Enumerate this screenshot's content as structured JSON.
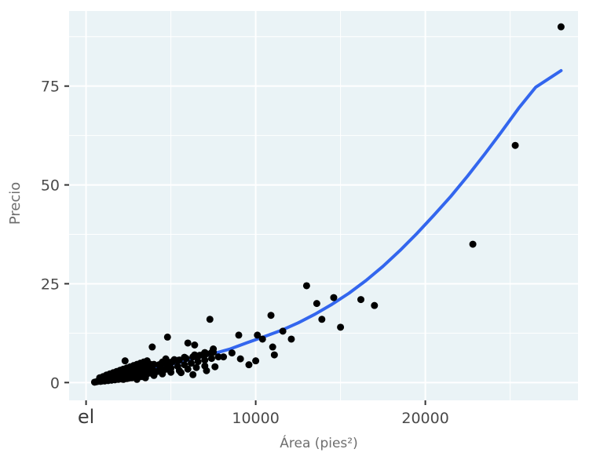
{
  "chart_data": {
    "type": "scatter",
    "xlabel": "Área (pies²)",
    "ylabel": "Precio",
    "xlim": [
      -1000,
      29000
    ],
    "ylim": [
      -4.5,
      94
    ],
    "x_ticks": [
      {
        "value": 0,
        "label": "el"
      },
      {
        "value": 10000,
        "label": "10000"
      },
      {
        "value": 20000,
        "label": "20000"
      }
    ],
    "y_ticks": [
      {
        "value": 0,
        "label": "0"
      },
      {
        "value": 25,
        "label": "25"
      },
      {
        "value": 50,
        "label": "50"
      },
      {
        "value": 75,
        "label": "75"
      }
    ],
    "grid": true,
    "panel_color": "#eaf3f6",
    "point_color": "#000000",
    "line_color": "#3366ee",
    "series": [
      {
        "kind": "points",
        "x": [
          500,
          600,
          700,
          800,
          850,
          900,
          950,
          1000,
          1050,
          1100,
          1150,
          1200,
          1250,
          1300,
          1350,
          1400,
          1450,
          1500,
          1550,
          1600,
          1650,
          1700,
          1750,
          1800,
          1850,
          1900,
          1950,
          2000,
          2050,
          2100,
          2150,
          2200,
          2250,
          2300,
          2350,
          2400,
          2450,
          2500,
          2550,
          2600,
          2650,
          2700,
          2750,
          2800,
          2850,
          2900,
          2950,
          3000,
          3100,
          3200,
          3300,
          3400,
          3500,
          3600,
          3700,
          3800,
          3900,
          4000,
          800,
          1000,
          1200,
          1400,
          1600,
          1800,
          2000,
          2200,
          2400,
          2600,
          2800,
          3000,
          3200,
          3400,
          3600,
          1100,
          1300,
          1500,
          1700,
          1900,
          2100,
          2300,
          2500,
          2700,
          2900,
          3100,
          3300,
          2200,
          2400,
          2600,
          2800,
          3000,
          3200,
          3400,
          3600,
          3800,
          4000,
          4200,
          4400,
          4600,
          4800,
          5000,
          2300,
          2700,
          3100,
          3500,
          3900,
          4300,
          4700,
          5100,
          5500,
          5900,
          6300,
          6700,
          7100,
          7500,
          2100,
          3000,
          3800,
          4500,
          5200,
          5800,
          6400,
          7000,
          1800,
          2400,
          2900,
          3400,
          3900,
          4400,
          4900,
          5400,
          5900,
          6400,
          6900,
          7400,
          2200,
          2600,
          3000,
          3400,
          3800,
          4200,
          4600,
          5000,
          5400,
          5800,
          6200,
          6600,
          7000,
          7400,
          7800,
          2300,
          3300,
          3900,
          4700,
          5600,
          6300,
          7100,
          7600,
          8100,
          8600,
          9100,
          9600,
          3900,
          4800,
          6000,
          6400,
          7500,
          7300,
          3000,
          3500,
          4000,
          4500,
          5000,
          5500,
          6000,
          6500,
          7000,
          9000,
          10100,
          10000,
          10400,
          11000,
          11100,
          10900,
          11600,
          12100,
          13000,
          13600,
          13900,
          14600,
          15000,
          16200,
          17000,
          22800,
          25300,
          28000
        ],
        "y": [
          0.1,
          0.2,
          0.3,
          0.4,
          0.3,
          0.5,
          0.4,
          0.6,
          0.5,
          0.7,
          0.6,
          0.8,
          0.7,
          0.9,
          0.8,
          1.0,
          0.9,
          1.1,
          1.0,
          1.2,
          1.1,
          1.3,
          1.2,
          1.4,
          1.3,
          1.5,
          1.4,
          1.6,
          1.5,
          1.7,
          1.6,
          1.8,
          1.7,
          1.9,
          1.8,
          2.0,
          1.9,
          2.1,
          2.0,
          2.2,
          2.1,
          2.3,
          2.2,
          2.4,
          2.3,
          2.5,
          2.4,
          2.6,
          2.8,
          3.0,
          3.2,
          3.4,
          3.6,
          3.8,
          4.0,
          4.2,
          4.4,
          4.6,
          1.2,
          1.5,
          1.9,
          2.2,
          2.5,
          2.8,
          3.1,
          3.4,
          3.7,
          4.0,
          4.3,
          4.6,
          4.9,
          5.2,
          5.5,
          0.4,
          0.5,
          0.6,
          0.7,
          0.8,
          0.9,
          1.0,
          1.1,
          1.2,
          1.3,
          1.4,
          1.5,
          0.8,
          1.0,
          1.2,
          1.4,
          1.6,
          1.8,
          2.0,
          2.2,
          2.4,
          2.6,
          2.8,
          3.0,
          3.2,
          3.4,
          3.6,
          2.5,
          2.9,
          3.3,
          3.7,
          4.1,
          4.5,
          4.9,
          5.3,
          5.7,
          6.1,
          6.5,
          6.9,
          7.3,
          7.7,
          3.2,
          4.0,
          4.6,
          5.2,
          5.8,
          6.4,
          7.0,
          7.6,
          2.0,
          2.6,
          3.1,
          3.6,
          4.1,
          4.6,
          5.1,
          5.6,
          6.1,
          6.6,
          7.1,
          7.6,
          0.9,
          1.3,
          1.7,
          2.1,
          2.5,
          2.9,
          3.3,
          3.7,
          4.1,
          4.5,
          4.9,
          5.3,
          5.7,
          6.1,
          6.5,
          5.5,
          4.5,
          3.5,
          6.0,
          2.5,
          2.0,
          3.0,
          4.0,
          6.5,
          7.5,
          6.0,
          4.5,
          9.0,
          11.5,
          10.0,
          9.5,
          8.5,
          16.0,
          0.8,
          1.2,
          1.8,
          2.2,
          2.6,
          3.0,
          3.4,
          3.8,
          4.2,
          12.0,
          12.0,
          5.5,
          11.0,
          9.0,
          7.0,
          17.0,
          13.0,
          11.0,
          24.5,
          20.0,
          16.0,
          21.5,
          14.0,
          21.0,
          19.5,
          35.0,
          60.0,
          90.0
        ]
      },
      {
        "kind": "fit-curve",
        "x": [
          500,
          1500,
          2500,
          3500,
          4500,
          5500,
          6500,
          7500,
          8500,
          9500,
          10500,
          11500,
          12500,
          13500,
          14500,
          15500,
          16500,
          17500,
          18500,
          19500,
          20500,
          21500,
          22500,
          23500,
          24500,
          25500,
          26500,
          27500,
          28000
        ],
        "y": [
          0.0,
          0.6,
          1.5,
          2.7,
          4.1,
          5.1,
          6.2,
          7.3,
          8.5,
          10.1,
          11.6,
          13.2,
          15.1,
          17.3,
          19.8,
          22.6,
          25.8,
          29.4,
          33.4,
          37.7,
          42.3,
          47.1,
          52.3,
          57.8,
          63.5,
          69.4,
          74.7,
          77.5,
          78.9
        ]
      }
    ]
  }
}
